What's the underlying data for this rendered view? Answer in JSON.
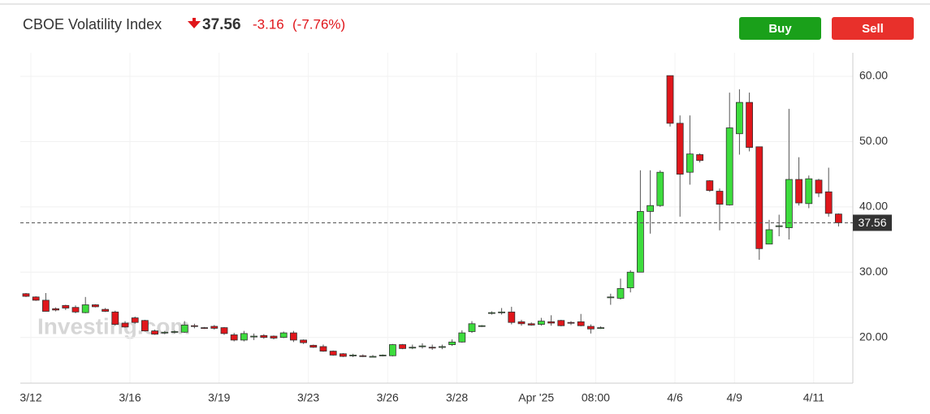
{
  "header": {
    "title": "CBOE Volatility Index",
    "price": "37.56",
    "change": "-3.16",
    "change_pct": "(-7.76%)"
  },
  "buttons": {
    "buy": "Buy",
    "sell": "Sell"
  },
  "chart_data": {
    "type": "candlestick",
    "watermark": "Investing.com",
    "up_color": "#3ddc3d",
    "down_color": "#e0161b",
    "grid": true,
    "categories": [
      "3/12",
      null,
      null,
      null,
      null,
      null,
      null,
      null,
      null,
      null,
      "3/16",
      null,
      null,
      null,
      null,
      null,
      null,
      null,
      null,
      "3/19",
      null,
      null,
      null,
      null,
      null,
      null,
      null,
      null,
      "3/23",
      null,
      null,
      null,
      null,
      null,
      null,
      null,
      "3/26",
      null,
      null,
      null,
      null,
      null,
      null,
      "3/28",
      null,
      null,
      null,
      null,
      null,
      null,
      null,
      "Apr '25",
      null,
      null,
      null,
      null,
      null,
      "08:00",
      null,
      null,
      null,
      null,
      null,
      null,
      null,
      "4/6",
      null,
      null,
      null,
      null,
      null,
      "4/9",
      null,
      null,
      null,
      null,
      null,
      null,
      null,
      "4/11",
      null,
      null,
      null
    ],
    "open": [
      26.7,
      26.2,
      25.7,
      24.4,
      24.9,
      24.6,
      23.8,
      25.0,
      24.3,
      23.9,
      22.2,
      23.0,
      22.6,
      21.0,
      20.8,
      20.8,
      20.8,
      21.8,
      21.5,
      21.7,
      21.5,
      20.4,
      19.6,
      20.2,
      20.3,
      20.2,
      20.0,
      20.7,
      19.6,
      18.8,
      18.6,
      17.9,
      17.5,
      17.2,
      17.2,
      17.1,
      17.2,
      17.2,
      18.9,
      18.5,
      18.6,
      18.5,
      18.5,
      18.9,
      19.3,
      20.9,
      21.8,
      23.8,
      23.8,
      23.9,
      22.4,
      22.1,
      22.0,
      22.4,
      22.6,
      22.3,
      22.4,
      21.7,
      21.5,
      26.2,
      26.0,
      27.6,
      30.0,
      39.3,
      40.2,
      60.1,
      52.8,
      45.3,
      48.0,
      44.0,
      42.4,
      40.3,
      51.2,
      56.0,
      49.2,
      34.3,
      37.0,
      36.8,
      44.2,
      40.5,
      44.1,
      42.3,
      38.9
    ],
    "high": [
      26.8,
      26.3,
      26.8,
      24.6,
      25.0,
      24.9,
      26.2,
      25.1,
      24.5,
      24.1,
      22.5,
      23.2,
      22.7,
      21.2,
      21.0,
      21.1,
      22.5,
      22.1,
      21.6,
      21.9,
      21.6,
      20.7,
      21.0,
      20.6,
      20.5,
      20.3,
      20.9,
      21.0,
      19.7,
      18.9,
      18.9,
      18.0,
      17.6,
      17.5,
      17.4,
      17.3,
      17.4,
      19.0,
      19.0,
      18.9,
      19.1,
      18.9,
      18.9,
      19.7,
      21.1,
      22.5,
      21.9,
      24.0,
      24.5,
      24.7,
      22.7,
      22.3,
      23.0,
      23.4,
      22.7,
      22.5,
      23.6,
      22.0,
      21.7,
      26.7,
      29.0,
      30.3,
      45.6,
      45.6,
      45.6,
      60.1,
      54.0,
      54.0,
      48.2,
      44.1,
      42.8,
      57.5,
      58.0,
      57.5,
      49.2,
      38.0,
      38.8,
      55.0,
      47.6,
      44.8,
      44.3,
      46.0,
      39.0
    ],
    "low": [
      26.2,
      25.6,
      24.0,
      24.0,
      24.2,
      23.7,
      23.7,
      24.6,
      23.9,
      21.8,
      21.5,
      22.1,
      20.9,
      20.4,
      20.5,
      20.6,
      20.7,
      21.4,
      21.3,
      21.2,
      20.4,
      19.4,
      19.4,
      19.6,
      19.8,
      19.7,
      19.9,
      19.3,
      19.0,
      18.4,
      17.8,
      17.2,
      17.0,
      17.0,
      17.0,
      17.0,
      17.1,
      17.1,
      18.2,
      18.2,
      18.3,
      18.1,
      18.2,
      18.7,
      19.2,
      20.7,
      21.6,
      23.5,
      23.5,
      22.0,
      21.8,
      21.8,
      21.8,
      21.8,
      21.7,
      21.9,
      21.7,
      20.6,
      21.3,
      25.0,
      25.8,
      26.9,
      30.0,
      35.9,
      40.0,
      52.3,
      38.5,
      43.4,
      46.8,
      42.3,
      36.4,
      40.2,
      48.0,
      48.5,
      31.9,
      34.3,
      35.5,
      35.0,
      40.2,
      39.8,
      41.5,
      38.5,
      37.0
    ],
    "close": [
      26.3,
      25.7,
      24.0,
      24.2,
      24.5,
      23.9,
      25.0,
      24.7,
      24.0,
      22.0,
      21.6,
      22.3,
      21.0,
      20.5,
      20.8,
      20.9,
      21.9,
      21.7,
      21.4,
      21.4,
      20.6,
      19.6,
      20.6,
      20.2,
      20.0,
      19.9,
      20.7,
      19.6,
      19.2,
      18.5,
      17.9,
      17.3,
      17.1,
      17.3,
      17.1,
      17.1,
      17.3,
      18.9,
      18.3,
      18.5,
      18.7,
      18.4,
      18.6,
      19.3,
      20.7,
      22.1,
      21.8,
      23.8,
      23.9,
      22.3,
      22.1,
      21.9,
      22.5,
      22.2,
      21.8,
      22.2,
      21.8,
      21.3,
      21.5,
      26.2,
      27.5,
      30.0,
      39.3,
      40.2,
      45.3,
      52.8,
      45.0,
      48.1,
      47.1,
      42.5,
      40.4,
      52.1,
      56.0,
      49.1,
      33.6,
      36.5,
      37.1,
      44.2,
      40.6,
      44.3,
      42.1,
      39.0,
      37.56
    ],
    "price_line": 37.56,
    "ylim": [
      13,
      63.6
    ],
    "yticks": [
      {
        "value": 20,
        "label": "20.00"
      },
      {
        "value": 30,
        "label": "30.00"
      },
      {
        "value": 40,
        "label": "40.00"
      },
      {
        "value": 50,
        "label": "50.00"
      },
      {
        "value": 60,
        "label": "60.00"
      }
    ]
  }
}
